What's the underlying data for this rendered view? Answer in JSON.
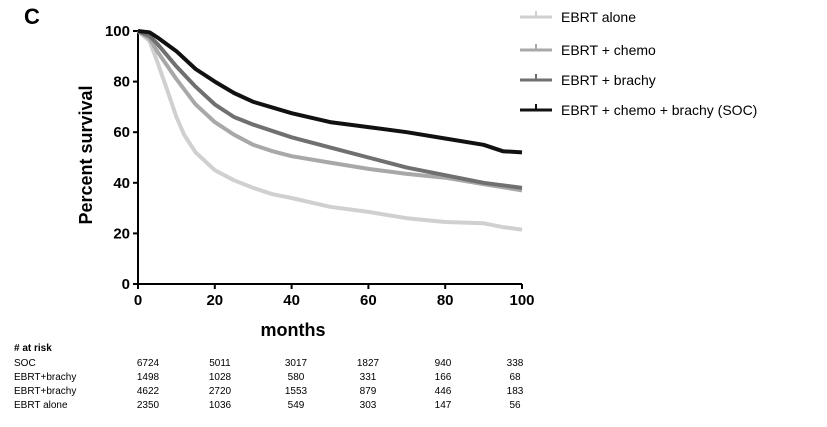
{
  "panel_label": "C",
  "chart_data": {
    "type": "line",
    "title": "",
    "xlabel": "months",
    "ylabel": "Percent survival",
    "xlim": [
      0,
      100
    ],
    "ylim": [
      0,
      100
    ],
    "x_ticks": [
      "0",
      "20",
      "40",
      "60",
      "80",
      "100"
    ],
    "y_ticks": [
      "0",
      "20",
      "40",
      "60",
      "80",
      "100"
    ],
    "grid": false,
    "legend_position": "top-right",
    "series": [
      {
        "name": "EBRT alone",
        "color": "#d0d0d0",
        "x": [
          0,
          3,
          5,
          8,
          10,
          12,
          15,
          20,
          25,
          30,
          35,
          40,
          50,
          60,
          70,
          80,
          90,
          95,
          100
        ],
        "y": [
          100,
          96,
          88,
          75,
          66,
          59,
          52,
          45,
          41,
          38,
          35.5,
          34,
          30.5,
          28.5,
          26,
          24.5,
          24,
          22.5,
          21.5
        ]
      },
      {
        "name": "EBRT + chemo",
        "color": "#a8a8a8",
        "x": [
          0,
          3,
          5,
          10,
          15,
          20,
          25,
          30,
          35,
          40,
          50,
          60,
          70,
          80,
          90,
          100
        ],
        "y": [
          100,
          97,
          92,
          81,
          71,
          64,
          59,
          55,
          52.5,
          50.5,
          48,
          45.5,
          43.5,
          42,
          39.5,
          37
        ]
      },
      {
        "name": "EBRT + brachy",
        "color": "#707070",
        "x": [
          0,
          3,
          5,
          10,
          15,
          20,
          25,
          30,
          40,
          50,
          60,
          70,
          80,
          90,
          95,
          100
        ],
        "y": [
          100,
          98,
          95,
          86,
          78,
          71,
          66,
          63,
          58,
          54,
          50,
          46,
          43,
          40,
          39,
          38
        ]
      },
      {
        "name": "EBRT + chemo + brachy (SOC)",
        "color": "#111111",
        "x": [
          0,
          3,
          5,
          10,
          15,
          20,
          25,
          30,
          40,
          50,
          60,
          70,
          80,
          90,
          95,
          100
        ],
        "y": [
          100,
          99.5,
          97.5,
          92,
          85,
          80,
          75.5,
          72,
          67.5,
          64,
          62,
          60,
          57.5,
          55,
          52.5,
          52
        ]
      }
    ]
  },
  "risk_table": {
    "header": "# at risk",
    "rows": [
      {
        "label": "SOC",
        "values": [
          "6724",
          "5011",
          "3017",
          "1827",
          "940",
          "338"
        ]
      },
      {
        "label": "EBRT+brachy",
        "values": [
          "1498",
          "1028",
          "580",
          "331",
          "166",
          "68"
        ]
      },
      {
        "label": "EBRT+brachy",
        "values": [
          "4622",
          "2720",
          "1553",
          "879",
          "446",
          "183"
        ]
      },
      {
        "label": "EBRT alone",
        "values": [
          "2350",
          "1036",
          "549",
          "303",
          "147",
          "56"
        ]
      }
    ]
  }
}
